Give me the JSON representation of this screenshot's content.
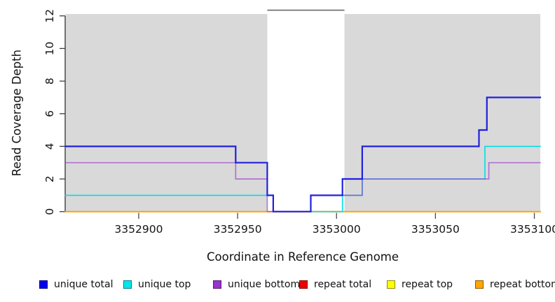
{
  "chart_data": {
    "type": "line",
    "subtype": "step-coverage",
    "title": "",
    "xlabel": "Coordinate in Reference Genome",
    "ylabel": "Read Coverage Depth",
    "xlim": [
      3352863,
      3353103
    ],
    "ylim": [
      0,
      12
    ],
    "x_ticks": [
      3352900,
      3352950,
      3353000,
      3353050,
      3353100
    ],
    "y_ticks": [
      0,
      2,
      4,
      6,
      8,
      10,
      12
    ],
    "grid": false,
    "plot_background_color": "#d9d9d9",
    "gap_band": {
      "x_start": 3352965,
      "x_end": 3353004,
      "fill": "#ffffff",
      "top_line_color": "#686868"
    },
    "series": [
      {
        "name": "repeat total",
        "color": "#ee0000",
        "width": 1.5,
        "x_end": 3353103,
        "steps": [
          [
            3352863,
            0
          ]
        ]
      },
      {
        "name": "repeat top",
        "color": "#ffff00",
        "width": 1.5,
        "x_end": 3353103,
        "steps": [
          [
            3352863,
            0
          ]
        ]
      },
      {
        "name": "repeat bottom",
        "color": "#ffa500",
        "width": 2,
        "x_end": 3353103,
        "steps": [
          [
            3352863,
            0
          ]
        ]
      },
      {
        "name": "unique top",
        "color": "#00dde8",
        "width": 1.6,
        "x_end": 3353103,
        "steps": [
          [
            3352863,
            1
          ],
          [
            3352968,
            0
          ],
          [
            3353003,
            1
          ],
          [
            3353013,
            2
          ],
          [
            3353075,
            4
          ]
        ]
      },
      {
        "name": "unique bottom",
        "color": "#9932cc",
        "opacity": 0.62,
        "width": 1.7,
        "x_end": 3353103,
        "steps": [
          [
            3352863,
            3
          ],
          [
            3352949,
            2
          ],
          [
            3352965,
            0
          ],
          [
            3352987,
            1
          ],
          [
            3353013,
            2
          ],
          [
            3353077,
            3
          ]
        ]
      },
      {
        "name": "unique total",
        "color": "#2020df",
        "width": 2.2,
        "x_end": 3353103,
        "steps": [
          [
            3352863,
            4
          ],
          [
            3352949,
            3
          ],
          [
            3352965,
            1
          ],
          [
            3352968,
            0
          ],
          [
            3352987,
            1
          ],
          [
            3353003,
            2
          ],
          [
            3353013,
            4
          ],
          [
            3353072,
            5
          ],
          [
            3353076,
            7
          ]
        ]
      }
    ],
    "legend": [
      {
        "label": "unique total",
        "color": "#0000ee"
      },
      {
        "label": "unique top",
        "color": "#00e5ee"
      },
      {
        "label": "unique bottom",
        "color": "#9a32cd"
      },
      {
        "label": "repeat total",
        "color": "#ee0000"
      },
      {
        "label": "repeat top",
        "color": "#ffff00"
      },
      {
        "label": "repeat bottom",
        "color": "#ffa500"
      }
    ],
    "legend_position": "bottom"
  }
}
